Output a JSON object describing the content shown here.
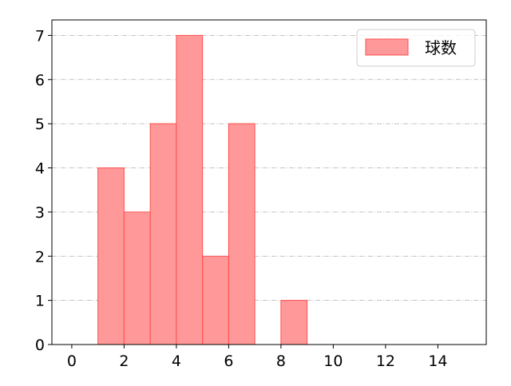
{
  "chart_data": {
    "type": "bar",
    "title": "",
    "xlabel": "",
    "ylabel": "",
    "bins": [
      [
        1,
        2
      ],
      [
        2,
        3
      ],
      [
        3,
        4
      ],
      [
        4,
        5
      ],
      [
        5,
        6
      ],
      [
        6,
        7
      ],
      [
        8,
        9
      ]
    ],
    "values": [
      4,
      3,
      5,
      7,
      2,
      5,
      1
    ],
    "xlim": [
      -0.76,
      15.85
    ],
    "ylim": [
      0,
      7.35
    ],
    "xticks": [
      0,
      2,
      4,
      6,
      8,
      10,
      12,
      14
    ],
    "yticks": [
      0,
      1,
      2,
      3,
      4,
      5,
      6,
      7
    ],
    "grid": "horizontal dash-dot",
    "legend": {
      "placement": "top-right",
      "entries": [
        "球数"
      ]
    },
    "colors": {
      "fill": "#ff9999",
      "edge": "#ff4d4d",
      "grid": "#b0b0b0"
    }
  }
}
